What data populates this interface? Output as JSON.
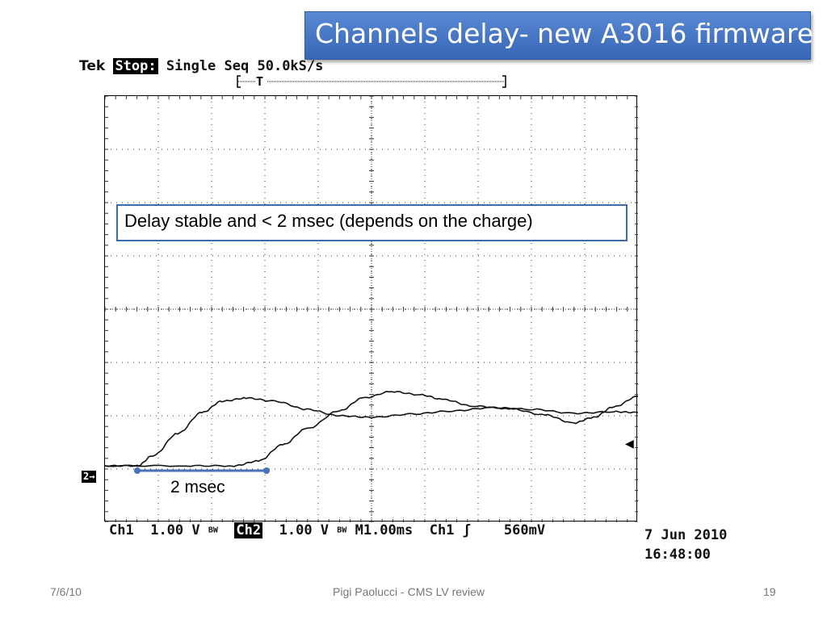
{
  "slide": {
    "title": "Channels delay- new A3016 firmware",
    "annotation": "Delay stable and < 2 msec (depends on the charge)",
    "delay_label": "2 msec"
  },
  "scope": {
    "brand": "Tek",
    "state": "Stop:",
    "mode": "Single Seq",
    "sample_rate": "50.0kS/s",
    "trigger_pos_label": "T",
    "ch2_marker": "2→",
    "ch1_label": "Ch1",
    "ch1_scale": "1.00 V",
    "bw1": "BW",
    "ch2_label": "Ch2",
    "ch2_scale": "1.00 V",
    "bw2": "BW",
    "timebase": "M1.00ms",
    "trig_source": "Ch1",
    "trig_slope": "ʃ",
    "trig_level": "560mV",
    "date": "7 Jun 2010",
    "time": "16:48:00"
  },
  "footer": {
    "date": "7/6/10",
    "center": "Pigi Paolucci - CMS LV review",
    "page": "19"
  },
  "colors": {
    "title_bg": "#3b6fbf",
    "annotation_border": "#3d69ae",
    "delay_line": "#4a72b8"
  }
}
